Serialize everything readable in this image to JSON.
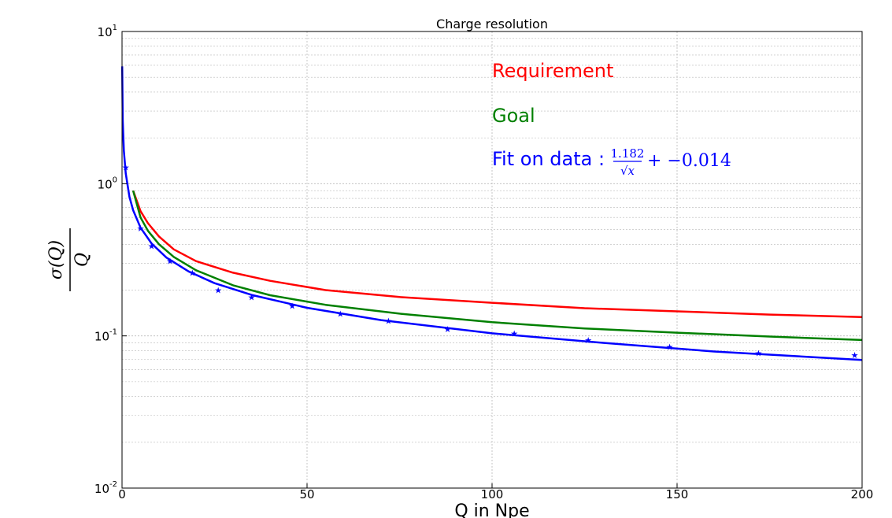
{
  "chart_data": {
    "type": "line",
    "title": "Charge resolution",
    "xlabel": "Q in Npe",
    "ylabel": {
      "numerator": "σ(Q)",
      "denominator": "Q"
    },
    "xlim": [
      0,
      200
    ],
    "ylim": [
      0.01,
      10
    ],
    "yscale": "log",
    "grid": true,
    "x_ticks": [
      "0",
      "50",
      "100",
      "150",
      "200"
    ],
    "x_tick_values": [
      0,
      50,
      100,
      150,
      200
    ],
    "y_ticks": [
      {
        "value": 0.01,
        "base": "10",
        "exp": "-2"
      },
      {
        "value": 0.1,
        "base": "10",
        "exp": "-1"
      },
      {
        "value": 1,
        "base": "10",
        "exp": "0"
      },
      {
        "value": 10,
        "base": "10",
        "exp": "1"
      }
    ],
    "legend_placement": "top-right",
    "series": [
      {
        "name": "Requirement",
        "color": "#ff0000",
        "kind": "line",
        "x": [
          3,
          5,
          7,
          10,
          14,
          20,
          30,
          40,
          55,
          75,
          100,
          125,
          150,
          175,
          200
        ],
        "y": [
          0.9,
          0.66,
          0.55,
          0.45,
          0.37,
          0.31,
          0.26,
          0.23,
          0.2,
          0.18,
          0.165,
          0.152,
          0.145,
          0.138,
          0.133
        ]
      },
      {
        "name": "Goal",
        "color": "#008000",
        "kind": "line",
        "x": [
          3,
          5,
          7,
          10,
          14,
          20,
          30,
          40,
          55,
          75,
          100,
          125,
          150,
          175,
          200
        ],
        "y": [
          0.9,
          0.6,
          0.49,
          0.4,
          0.33,
          0.27,
          0.215,
          0.185,
          0.16,
          0.14,
          0.123,
          0.112,
          0.105,
          0.099,
          0.094
        ]
      },
      {
        "name": "Fit on data",
        "color": "#0000ff",
        "kind": "line",
        "formula": {
          "prefix": "Fit on data :",
          "coef": "1.182",
          "denom": "√x",
          "suffix": "+ −0.014"
        },
        "x": [
          0.04,
          0.2,
          0.5,
          1,
          2,
          3,
          5,
          8,
          12,
          18,
          25,
          35,
          50,
          70,
          100,
          130,
          160,
          200
        ],
        "y": [
          5.9,
          2.6,
          1.65,
          1.17,
          0.82,
          0.67,
          0.514,
          0.404,
          0.327,
          0.265,
          0.222,
          0.186,
          0.153,
          0.127,
          0.104,
          0.09,
          0.079,
          0.0695
        ]
      },
      {
        "name": "data",
        "color": "#0000ff",
        "kind": "scatter",
        "x": [
          1,
          5,
          8,
          13,
          19,
          26,
          35,
          46,
          59,
          72,
          88,
          106,
          126,
          148,
          172,
          198
        ],
        "y": [
          1.28,
          0.51,
          0.39,
          0.31,
          0.26,
          0.2,
          0.18,
          0.158,
          0.14,
          0.126,
          0.111,
          0.104,
          0.094,
          0.085,
          0.077,
          0.075
        ]
      }
    ]
  }
}
